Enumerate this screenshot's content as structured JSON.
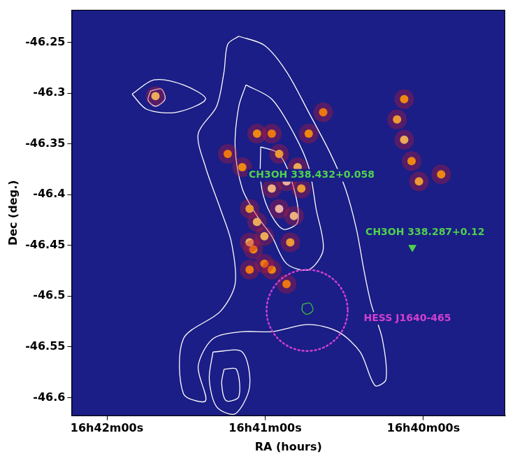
{
  "chart_data": {
    "type": "scatter",
    "x_label": "RA (hours)",
    "y_label": "Dec (deg.)",
    "xlim": [
      60133.4,
      59969.0
    ],
    "xticks": [
      {
        "value": 60120,
        "label": "16h42m00s"
      },
      {
        "value": 60060,
        "label": "16h41m00s"
      },
      {
        "value": 60000,
        "label": "16h40m00s"
      }
    ],
    "ylim": [
      -46.618,
      -46.218
    ],
    "yticks": [
      -46.25,
      -46.3,
      -46.35,
      -46.4,
      -46.45,
      -46.5,
      -46.55,
      -46.6
    ],
    "grid": false,
    "emission": [
      [
        60051.9,
        -46.387,
        1.0
      ],
      [
        60054.7,
        -46.414,
        1.0
      ],
      [
        60057.5,
        -46.394,
        0.9
      ],
      [
        60049.1,
        -46.421,
        0.9
      ],
      [
        60060.3,
        -46.441,
        0.8
      ],
      [
        60063.1,
        -46.427,
        0.8
      ],
      [
        60050.5,
        -46.447,
        0.7
      ],
      [
        60047.7,
        -46.373,
        0.8
      ],
      [
        60054.7,
        -46.36,
        0.7
      ],
      [
        60043.5,
        -46.34,
        0.6
      ],
      [
        60038.0,
        -46.319,
        0.5
      ],
      [
        60068.7,
        -46.373,
        0.6
      ],
      [
        60074.2,
        -46.36,
        0.5
      ],
      [
        60065.9,
        -46.414,
        0.7
      ],
      [
        60064.5,
        -46.454,
        0.6
      ],
      [
        60057.5,
        -46.474,
        0.6
      ],
      [
        60051.9,
        -46.488,
        0.5
      ],
      [
        60060.3,
        -46.468,
        0.5
      ],
      [
        60065.9,
        -46.474,
        0.5
      ],
      [
        60057.5,
        -46.34,
        0.5
      ],
      [
        60063.1,
        -46.34,
        0.6
      ],
      [
        60065.9,
        -46.447,
        0.8
      ],
      [
        60046.3,
        -46.394,
        0.7
      ],
      [
        60101.6,
        -46.303,
        0.8
      ],
      [
        60010.0,
        -46.326,
        0.7
      ],
      [
        60007.3,
        -46.346,
        0.8
      ],
      [
        60004.5,
        -46.367,
        0.6
      ],
      [
        60001.7,
        -46.387,
        0.7
      ],
      [
        59993.3,
        -46.38,
        0.6
      ],
      [
        60007.3,
        -46.306,
        0.6
      ]
    ],
    "contours": [
      {
        "color": "#ffffff",
        "values": [
          [
            60070.0,
            -46.244
          ],
          [
            60060.3,
            -46.253
          ],
          [
            60051.9,
            -46.279
          ],
          [
            60043.5,
            -46.319
          ],
          [
            60035.2,
            -46.36
          ],
          [
            60029.6,
            -46.394
          ],
          [
            60025.4,
            -46.434
          ],
          [
            60022.6,
            -46.474
          ],
          [
            60019.8,
            -46.508
          ],
          [
            60015.6,
            -46.542
          ],
          [
            60014.2,
            -46.582
          ],
          [
            60018.4,
            -46.588
          ],
          [
            60024.0,
            -46.555
          ],
          [
            60032.4,
            -46.535
          ],
          [
            60043.5,
            -46.528
          ],
          [
            60057.5,
            -46.535
          ],
          [
            60068.7,
            -46.535
          ],
          [
            60079.8,
            -46.542
          ],
          [
            60085.4,
            -46.569
          ],
          [
            60082.6,
            -46.603
          ],
          [
            60091.0,
            -46.596
          ],
          [
            60091.0,
            -46.542
          ],
          [
            60077.0,
            -46.515
          ],
          [
            60071.4,
            -46.488
          ],
          [
            60072.8,
            -46.447
          ],
          [
            60077.0,
            -46.414
          ],
          [
            60082.6,
            -46.373
          ],
          [
            60085.4,
            -46.34
          ],
          [
            60078.4,
            -46.313
          ],
          [
            60075.6,
            -46.279
          ],
          [
            60074.2,
            -46.252
          ],
          [
            60070.0,
            -46.244
          ]
        ]
      },
      {
        "color": "#ffffff",
        "values": [
          [
            60067.3,
            -46.292
          ],
          [
            60057.5,
            -46.306
          ],
          [
            60049.1,
            -46.34
          ],
          [
            60043.5,
            -46.373
          ],
          [
            60040.7,
            -46.414
          ],
          [
            60038.0,
            -46.454
          ],
          [
            60043.5,
            -46.474
          ],
          [
            60051.9,
            -46.468
          ],
          [
            60057.5,
            -46.441
          ],
          [
            60063.1,
            -46.421
          ],
          [
            60068.7,
            -46.394
          ],
          [
            60071.4,
            -46.353
          ],
          [
            60070.0,
            -46.313
          ],
          [
            60067.3,
            -46.292
          ]
        ]
      },
      {
        "color": "#ffffff",
        "values": [
          [
            60061.7,
            -46.353
          ],
          [
            60054.7,
            -46.36
          ],
          [
            60049.1,
            -46.394
          ],
          [
            60047.7,
            -46.427
          ],
          [
            60053.3,
            -46.434
          ],
          [
            60058.9,
            -46.414
          ],
          [
            60061.7,
            -46.387
          ],
          [
            60061.7,
            -46.353
          ]
        ]
      },
      {
        "color": "#ffffff",
        "values": [
          [
            60103.5,
            -46.298
          ],
          [
            60099.4,
            -46.296
          ],
          [
            60098.0,
            -46.306
          ],
          [
            60101.6,
            -46.313
          ],
          [
            60104.4,
            -46.307
          ],
          [
            60103.5,
            -46.298
          ]
        ]
      },
      {
        "color": "#ffffff",
        "values": [
          [
            60110.5,
            -46.301
          ],
          [
            60102.1,
            -46.287
          ],
          [
            60091.0,
            -46.292
          ],
          [
            60082.6,
            -46.306
          ],
          [
            60093.8,
            -46.319
          ],
          [
            60104.9,
            -46.316
          ],
          [
            60110.5,
            -46.301
          ]
        ]
      },
      {
        "color": "#ffffff",
        "values": [
          [
            60079.8,
            -46.555
          ],
          [
            60068.7,
            -46.555
          ],
          [
            60065.9,
            -46.589
          ],
          [
            60071.4,
            -46.616
          ],
          [
            60078.4,
            -46.609
          ],
          [
            60081.2,
            -46.582
          ],
          [
            60079.8,
            -46.555
          ]
        ]
      },
      {
        "color": "#ffffff",
        "values": [
          [
            60075.6,
            -46.572
          ],
          [
            60070.9,
            -46.572
          ],
          [
            60070.0,
            -46.599
          ],
          [
            60074.8,
            -46.603
          ],
          [
            60076.5,
            -46.586
          ],
          [
            60075.6,
            -46.572
          ]
        ]
      },
      {
        "color": "#3fbf3f",
        "values": [
          [
            60045.8,
            -46.508
          ],
          [
            60043.0,
            -46.507
          ],
          [
            60041.9,
            -46.514
          ],
          [
            60044.1,
            -46.518
          ],
          [
            60046.0,
            -46.514
          ],
          [
            60045.8,
            -46.508
          ]
        ]
      }
    ],
    "annotations": [
      {
        "text": "CH3OH 338.432+0.058",
        "color": "#4fd04f",
        "x": 60042.4,
        "y": -46.381
      },
      {
        "text": "CH3OH 338.287+0.12",
        "color": "#4fd04f",
        "x": 59999.4,
        "y": -46.437,
        "marker": "triangle-down",
        "marker_x": 60004.2,
        "marker_y": -46.452
      },
      {
        "text": "HESS J1640-465",
        "color": "#d23fd2",
        "x": 60006.1,
        "y": -46.522,
        "circle": {
          "x": 60044.1,
          "y": -46.514,
          "radius": 0.04
        },
        "line_style": "dotted"
      }
    ]
  }
}
